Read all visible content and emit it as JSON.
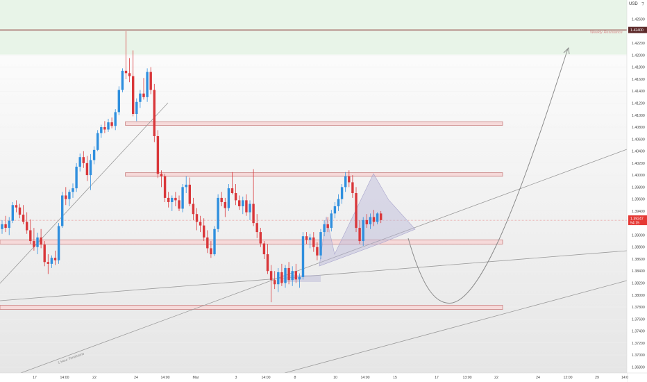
{
  "chart_data": {
    "type": "candlestick",
    "currency": "USD",
    "price_axis": {
      "min": 1.367,
      "max": 1.4292,
      "ticks": [
        "1.42600",
        "1.42400",
        "1.42200",
        "1.42000",
        "1.41800",
        "1.41600",
        "1.41400",
        "1.41200",
        "1.41000",
        "1.40800",
        "1.40600",
        "1.40400",
        "1.40200",
        "1.40000",
        "1.39800",
        "1.39600",
        "1.39400",
        "1.39200",
        "1.39000",
        "1.38800",
        "1.38600",
        "1.38400",
        "1.38200",
        "1.38000",
        "1.37800",
        "1.37600",
        "1.37400",
        "1.37200",
        "1.37000",
        "1.36800"
      ]
    },
    "time_axis_labels": [
      "17",
      "14:00",
      "22",
      "24",
      "14:00",
      "Mar",
      "3",
      "14:00",
      "8",
      "10",
      "14:00",
      "15",
      "17",
      "13:00",
      "22",
      "24",
      "12:00",
      "29",
      "14:0"
    ],
    "last_price": {
      "price": "1.39247",
      "countdown": "54:15",
      "color": "#e53935"
    },
    "zones": [
      {
        "name": "weekly-resistance",
        "label": "Weekly Resistance",
        "from": 1.4201,
        "to": 1.4292,
        "color": "#e8f4e8",
        "top_line": 1.4242,
        "line_color": "#8b3a3a"
      },
      {
        "name": "zone-1",
        "from": 1.4083,
        "to": 1.4089,
        "start_bar": 36,
        "end_x_label": "22"
      },
      {
        "name": "zone-2",
        "from": 1.3998,
        "to": 1.4004,
        "start_bar": 36,
        "end_x_label": "22"
      },
      {
        "name": "zone-3",
        "from": 1.3885,
        "to": 1.3892,
        "start_bar": 0,
        "end_x_label": "22"
      },
      {
        "name": "zone-4",
        "from": 1.3776,
        "to": 1.3783,
        "start_bar": 0,
        "end_x_label": "22"
      }
    ],
    "annotations": [
      {
        "name": "weekly-resistance-label",
        "text": "Weekly Resistance",
        "color": "#d98c8c"
      },
      {
        "name": "one-hour-timeframe-label",
        "text": "1 Hour Timeframe",
        "color": "#888888"
      }
    ],
    "candles": [
      {
        "o": 1.391,
        "h": 1.3925,
        "l": 1.3902,
        "c": 1.3918
      },
      {
        "o": 1.3918,
        "h": 1.3932,
        "l": 1.3905,
        "c": 1.3912
      },
      {
        "o": 1.3912,
        "h": 1.393,
        "l": 1.39,
        "c": 1.3924
      },
      {
        "o": 1.3924,
        "h": 1.3955,
        "l": 1.392,
        "c": 1.395
      },
      {
        "o": 1.395,
        "h": 1.3958,
        "l": 1.3938,
        "c": 1.3946
      },
      {
        "o": 1.3946,
        "h": 1.3952,
        "l": 1.3928,
        "c": 1.3934
      },
      {
        "o": 1.3934,
        "h": 1.395,
        "l": 1.3918,
        "c": 1.3922
      },
      {
        "o": 1.3922,
        "h": 1.3938,
        "l": 1.3902,
        "c": 1.3908
      },
      {
        "o": 1.3908,
        "h": 1.3926,
        "l": 1.3885,
        "c": 1.389
      },
      {
        "o": 1.389,
        "h": 1.3912,
        "l": 1.3874,
        "c": 1.388
      },
      {
        "o": 1.388,
        "h": 1.3904,
        "l": 1.3868,
        "c": 1.3896
      },
      {
        "o": 1.3896,
        "h": 1.391,
        "l": 1.3878,
        "c": 1.3884
      },
      {
        "o": 1.3884,
        "h": 1.389,
        "l": 1.3848,
        "c": 1.3855
      },
      {
        "o": 1.3855,
        "h": 1.3868,
        "l": 1.3835,
        "c": 1.3852
      },
      {
        "o": 1.3852,
        "h": 1.3866,
        "l": 1.3845,
        "c": 1.3862
      },
      {
        "o": 1.3862,
        "h": 1.3874,
        "l": 1.385,
        "c": 1.3858
      },
      {
        "o": 1.3858,
        "h": 1.392,
        "l": 1.3852,
        "c": 1.3915
      },
      {
        "o": 1.3915,
        "h": 1.3972,
        "l": 1.3912,
        "c": 1.3966
      },
      {
        "o": 1.3966,
        "h": 1.398,
        "l": 1.395,
        "c": 1.396
      },
      {
        "o": 1.396,
        "h": 1.3976,
        "l": 1.3948,
        "c": 1.3972
      },
      {
        "o": 1.3972,
        "h": 1.3986,
        "l": 1.3962,
        "c": 1.3978
      },
      {
        "o": 1.3978,
        "h": 1.402,
        "l": 1.3972,
        "c": 1.4014
      },
      {
        "o": 1.4014,
        "h": 1.4036,
        "l": 1.4006,
        "c": 1.403
      },
      {
        "o": 1.403,
        "h": 1.404,
        "l": 1.4012,
        "c": 1.402
      },
      {
        "o": 1.402,
        "h": 1.4032,
        "l": 1.399,
        "c": 1.4
      },
      {
        "o": 1.4,
        "h": 1.4035,
        "l": 1.3975,
        "c": 1.4025
      },
      {
        "o": 1.4025,
        "h": 1.4048,
        "l": 1.4018,
        "c": 1.4042
      },
      {
        "o": 1.4042,
        "h": 1.4075,
        "l": 1.404,
        "c": 1.407
      },
      {
        "o": 1.407,
        "h": 1.4084,
        "l": 1.4062,
        "c": 1.408
      },
      {
        "o": 1.408,
        "h": 1.409,
        "l": 1.407,
        "c": 1.4076
      },
      {
        "o": 1.4076,
        "h": 1.4094,
        "l": 1.4072,
        "c": 1.4088
      },
      {
        "o": 1.4088,
        "h": 1.4096,
        "l": 1.4078,
        "c": 1.4082
      },
      {
        "o": 1.4082,
        "h": 1.411,
        "l": 1.4075,
        "c": 1.4105
      },
      {
        "o": 1.4105,
        "h": 1.4148,
        "l": 1.41,
        "c": 1.4142
      },
      {
        "o": 1.4142,
        "h": 1.4178,
        "l": 1.4138,
        "c": 1.4174
      },
      {
        "o": 1.4174,
        "h": 1.424,
        "l": 1.416,
        "c": 1.417
      },
      {
        "o": 1.417,
        "h": 1.4195,
        "l": 1.4155,
        "c": 1.4165
      },
      {
        "o": 1.4165,
        "h": 1.4208,
        "l": 1.4098,
        "c": 1.4102
      },
      {
        "o": 1.4102,
        "h": 1.4128,
        "l": 1.409,
        "c": 1.4122
      },
      {
        "o": 1.4122,
        "h": 1.4142,
        "l": 1.4112,
        "c": 1.4136
      },
      {
        "o": 1.4136,
        "h": 1.4162,
        "l": 1.4126,
        "c": 1.413
      },
      {
        "o": 1.413,
        "h": 1.4178,
        "l": 1.4122,
        "c": 1.4172
      },
      {
        "o": 1.4172,
        "h": 1.418,
        "l": 1.4135,
        "c": 1.4142
      },
      {
        "o": 1.4142,
        "h": 1.4152,
        "l": 1.4055,
        "c": 1.4065
      },
      {
        "o": 1.4065,
        "h": 1.4075,
        "l": 1.3995,
        "c": 1.4002
      },
      {
        "o": 1.4002,
        "h": 1.4008,
        "l": 1.398,
        "c": 1.3998
      },
      {
        "o": 1.3998,
        "h": 1.4002,
        "l": 1.3955,
        "c": 1.3962
      },
      {
        "o": 1.3962,
        "h": 1.3972,
        "l": 1.3946,
        "c": 1.3955
      },
      {
        "o": 1.3955,
        "h": 1.3966,
        "l": 1.394,
        "c": 1.3962
      },
      {
        "o": 1.3962,
        "h": 1.3972,
        "l": 1.3948,
        "c": 1.3958
      },
      {
        "o": 1.3958,
        "h": 1.3966,
        "l": 1.394,
        "c": 1.3944
      },
      {
        "o": 1.3944,
        "h": 1.3985,
        "l": 1.3938,
        "c": 1.398
      },
      {
        "o": 1.398,
        "h": 1.3998,
        "l": 1.397,
        "c": 1.3984
      },
      {
        "o": 1.3984,
        "h": 1.3996,
        "l": 1.3948,
        "c": 1.3952
      },
      {
        "o": 1.3952,
        "h": 1.3962,
        "l": 1.3925,
        "c": 1.3935
      },
      {
        "o": 1.3935,
        "h": 1.3945,
        "l": 1.3908,
        "c": 1.3922
      },
      {
        "o": 1.3922,
        "h": 1.3932,
        "l": 1.3905,
        "c": 1.3916
      },
      {
        "o": 1.3916,
        "h": 1.3928,
        "l": 1.389,
        "c": 1.3896
      },
      {
        "o": 1.3896,
        "h": 1.3908,
        "l": 1.387,
        "c": 1.3878
      },
      {
        "o": 1.3878,
        "h": 1.389,
        "l": 1.3862,
        "c": 1.3868
      },
      {
        "o": 1.3868,
        "h": 1.3915,
        "l": 1.3865,
        "c": 1.391
      },
      {
        "o": 1.391,
        "h": 1.3968,
        "l": 1.3905,
        "c": 1.3962
      },
      {
        "o": 1.3962,
        "h": 1.3972,
        "l": 1.3948,
        "c": 1.3955
      },
      {
        "o": 1.3955,
        "h": 1.3962,
        "l": 1.393,
        "c": 1.3945
      },
      {
        "o": 1.3945,
        "h": 1.3985,
        "l": 1.394,
        "c": 1.3978
      },
      {
        "o": 1.3978,
        "h": 1.4005,
        "l": 1.3968,
        "c": 1.397
      },
      {
        "o": 1.397,
        "h": 1.3985,
        "l": 1.395,
        "c": 1.3958
      },
      {
        "o": 1.3958,
        "h": 1.3966,
        "l": 1.3942,
        "c": 1.3948
      },
      {
        "o": 1.3948,
        "h": 1.3964,
        "l": 1.3935,
        "c": 1.3958
      },
      {
        "o": 1.3958,
        "h": 1.3968,
        "l": 1.3932,
        "c": 1.3938
      },
      {
        "o": 1.3938,
        "h": 1.3958,
        "l": 1.3925,
        "c": 1.3952
      },
      {
        "o": 1.3952,
        "h": 1.401,
        "l": 1.3915,
        "c": 1.392
      },
      {
        "o": 1.392,
        "h": 1.3935,
        "l": 1.3895,
        "c": 1.3905
      },
      {
        "o": 1.3905,
        "h": 1.3912,
        "l": 1.388,
        "c": 1.3886
      },
      {
        "o": 1.3886,
        "h": 1.389,
        "l": 1.386,
        "c": 1.3868
      },
      {
        "o": 1.3868,
        "h": 1.3885,
        "l": 1.3835,
        "c": 1.384
      },
      {
        "o": 1.384,
        "h": 1.385,
        "l": 1.3788,
        "c": 1.3825
      },
      {
        "o": 1.3825,
        "h": 1.384,
        "l": 1.381,
        "c": 1.3818
      },
      {
        "o": 1.3818,
        "h": 1.3845,
        "l": 1.3805,
        "c": 1.3838
      },
      {
        "o": 1.3838,
        "h": 1.3852,
        "l": 1.3815,
        "c": 1.382
      },
      {
        "o": 1.382,
        "h": 1.385,
        "l": 1.3812,
        "c": 1.3845
      },
      {
        "o": 1.3845,
        "h": 1.3855,
        "l": 1.3818,
        "c": 1.3825
      },
      {
        "o": 1.3825,
        "h": 1.3848,
        "l": 1.3815,
        "c": 1.384
      },
      {
        "o": 1.384,
        "h": 1.3852,
        "l": 1.382,
        "c": 1.3826
      },
      {
        "o": 1.3826,
        "h": 1.3836,
        "l": 1.3812,
        "c": 1.383
      },
      {
        "o": 1.383,
        "h": 1.3905,
        "l": 1.3826,
        "c": 1.3898
      },
      {
        "o": 1.3898,
        "h": 1.3905,
        "l": 1.3885,
        "c": 1.3892
      },
      {
        "o": 1.3892,
        "h": 1.3902,
        "l": 1.3878,
        "c": 1.3896
      },
      {
        "o": 1.3896,
        "h": 1.3905,
        "l": 1.3872,
        "c": 1.388
      },
      {
        "o": 1.388,
        "h": 1.3888,
        "l": 1.3858,
        "c": 1.3866
      },
      {
        "o": 1.3866,
        "h": 1.391,
        "l": 1.386,
        "c": 1.3905
      },
      {
        "o": 1.3905,
        "h": 1.3925,
        "l": 1.3898,
        "c": 1.3918
      },
      {
        "o": 1.3918,
        "h": 1.393,
        "l": 1.3905,
        "c": 1.3912
      },
      {
        "o": 1.3912,
        "h": 1.3942,
        "l": 1.3906,
        "c": 1.3936
      },
      {
        "o": 1.3936,
        "h": 1.3955,
        "l": 1.3928,
        "c": 1.3948
      },
      {
        "o": 1.3948,
        "h": 1.3968,
        "l": 1.394,
        "c": 1.396
      },
      {
        "o": 1.396,
        "h": 1.3985,
        "l": 1.3952,
        "c": 1.398
      },
      {
        "o": 1.398,
        "h": 1.4005,
        "l": 1.3972,
        "c": 1.3998
      },
      {
        "o": 1.3998,
        "h": 1.4008,
        "l": 1.398,
        "c": 1.3988
      },
      {
        "o": 1.3988,
        "h": 1.4,
        "l": 1.3962,
        "c": 1.397
      },
      {
        "o": 1.397,
        "h": 1.398,
        "l": 1.3905,
        "c": 1.3912
      },
      {
        "o": 1.3912,
        "h": 1.3925,
        "l": 1.3885,
        "c": 1.389
      },
      {
        "o": 1.389,
        "h": 1.393,
        "l": 1.3882,
        "c": 1.3925
      },
      {
        "o": 1.3925,
        "h": 1.3935,
        "l": 1.3912,
        "c": 1.3918
      },
      {
        "o": 1.3918,
        "h": 1.3936,
        "l": 1.391,
        "c": 1.393
      },
      {
        "o": 1.393,
        "h": 1.3942,
        "l": 1.3915,
        "c": 1.3922
      },
      {
        "o": 1.3922,
        "h": 1.3938,
        "l": 1.3918,
        "c": 1.3936
      },
      {
        "o": 1.3936,
        "h": 1.394,
        "l": 1.392,
        "c": 1.3925
      }
    ]
  }
}
